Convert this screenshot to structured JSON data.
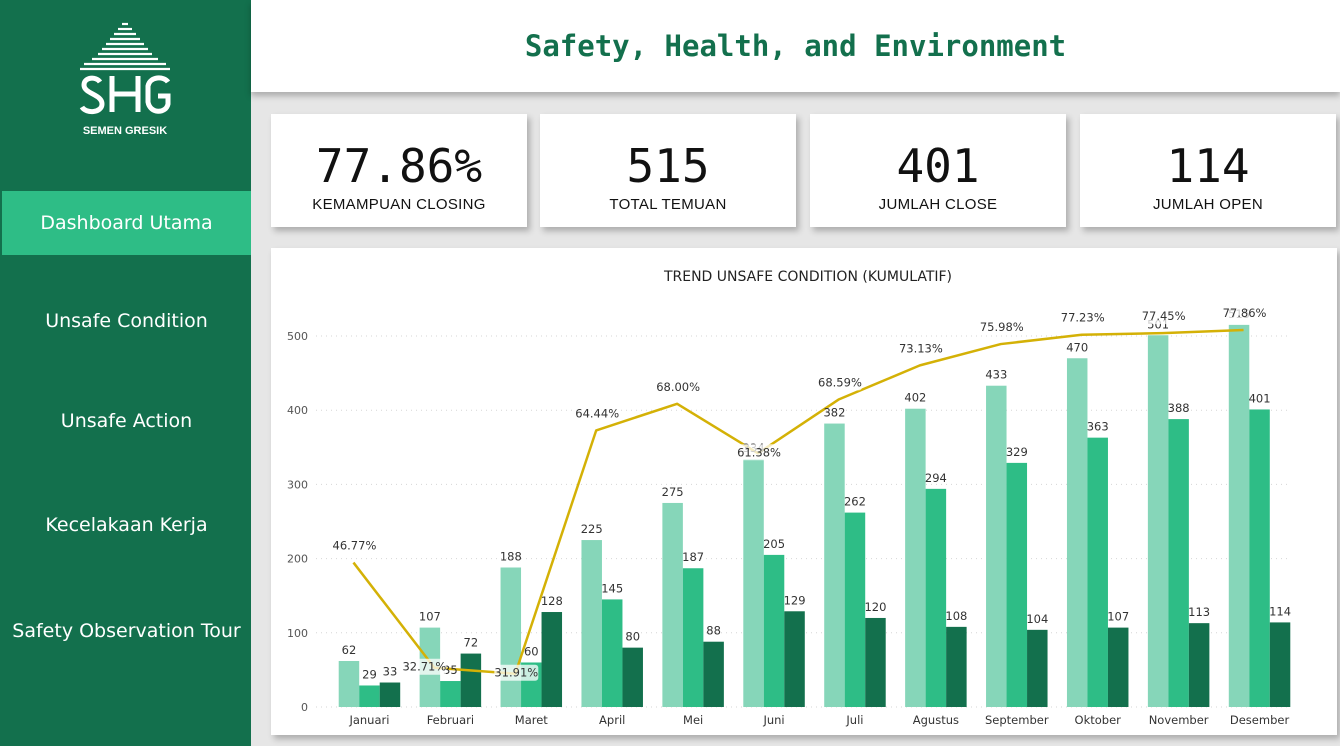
{
  "brand": {
    "logo_text": "SEMEN GRESIK",
    "color_primary": "#13704d",
    "color_accent": "#2ebd86"
  },
  "sidebar": {
    "items": [
      {
        "label": "Dashboard Utama",
        "active": true
      },
      {
        "label": "Unsafe Condition",
        "active": false
      },
      {
        "label": "Unsafe Action",
        "active": false
      },
      {
        "label": "Kecelakaan Kerja",
        "active": false
      },
      {
        "label": "Safety Observation Tour",
        "active": false
      }
    ]
  },
  "header": {
    "title": "Safety, Health, and Environment"
  },
  "kpis": [
    {
      "value": "77.86%",
      "label": "KEMAMPUAN CLOSING"
    },
    {
      "value": "515",
      "label": "TOTAL TEMUAN"
    },
    {
      "value": "401",
      "label": "JUMLAH CLOSE"
    },
    {
      "value": "114",
      "label": "JUMLAH OPEN"
    }
  ],
  "chart_data": {
    "type": "bar",
    "title": "TREND UNSAFE CONDITION (KUMULATIF)",
    "categories": [
      "Januari",
      "Februari",
      "Maret",
      "April",
      "Mei",
      "Juni",
      "Juli",
      "Agustus",
      "September",
      "Oktober",
      "November",
      "Desember"
    ],
    "series": [
      {
        "values": [
          62,
          107,
          188,
          225,
          275,
          334,
          382,
          402,
          433,
          470,
          501,
          515
        ],
        "color": "#86d6b9"
      },
      {
        "values": [
          29,
          35,
          60,
          145,
          187,
          205,
          262,
          294,
          329,
          363,
          388,
          401
        ],
        "color": "#2ebd86"
      },
      {
        "values": [
          33,
          72,
          128,
          80,
          88,
          129,
          120,
          108,
          104,
          107,
          113,
          114
        ],
        "color": "#13704d"
      }
    ],
    "line": {
      "values": [
        46.77,
        32.71,
        31.91,
        64.44,
        68.0,
        61.38,
        68.59,
        73.13,
        75.98,
        77.23,
        77.45,
        77.86
      ],
      "labels": [
        "46.77%",
        "32.71%",
        "31.91%",
        "64.44%",
        "68.00%",
        "61.38%",
        "68.59%",
        "73.13%",
        "75.98%",
        "77.23%",
        "77.45%",
        "77.86%"
      ],
      "color": "#d4b106"
    },
    "y_ticks": [
      0,
      100,
      200,
      300,
      400,
      500
    ],
    "ylim": [
      0,
      500
    ],
    "grid": true
  }
}
